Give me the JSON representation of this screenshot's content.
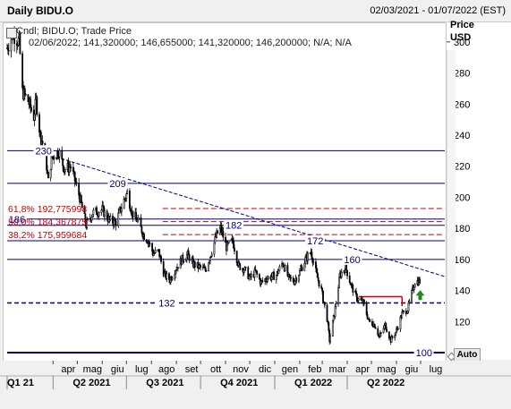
{
  "header": {
    "title": "Daily BIDU.O",
    "date_range": "02/03/2021 - 01/07/2022 (EST)"
  },
  "legend": {
    "line1": "Cndl; BIDU.O; Trade Price",
    "line2": "02/06/2022; 141,320000; 146,655000; 141,320000; 146,200000; N/A; N/A"
  },
  "yaxis": {
    "title": "Price",
    "unit": "USD"
  },
  "controls": {
    "auto_label": "Auto"
  },
  "colors": {
    "navy": "#000080",
    "red": "#cc0000",
    "green": "#1a8a1a",
    "candle": "#000000"
  },
  "chart_data": {
    "type": "candlestick",
    "ylim": [
      96,
      312
    ],
    "yticks": [
      100,
      120,
      140,
      160,
      180,
      200,
      220,
      240,
      260,
      280,
      300
    ],
    "xlim": [
      "2021-02-03",
      "2022-07-31"
    ],
    "month_labels": [
      {
        "date": "2021-04-01",
        "label": "apr"
      },
      {
        "date": "2021-05-01",
        "label": "mag"
      },
      {
        "date": "2021-06-01",
        "label": "giu"
      },
      {
        "date": "2021-07-01",
        "label": "lug"
      },
      {
        "date": "2021-08-01",
        "label": "ago"
      },
      {
        "date": "2021-09-01",
        "label": "set"
      },
      {
        "date": "2021-10-01",
        "label": "ott"
      },
      {
        "date": "2021-11-01",
        "label": "nov"
      },
      {
        "date": "2021-12-01",
        "label": "dic"
      },
      {
        "date": "2022-01-01",
        "label": "gen"
      },
      {
        "date": "2022-02-01",
        "label": "feb"
      },
      {
        "date": "2022-03-01",
        "label": "mar"
      },
      {
        "date": "2022-04-01",
        "label": "apr"
      },
      {
        "date": "2022-05-01",
        "label": "mag"
      },
      {
        "date": "2022-06-01",
        "label": "giu"
      },
      {
        "date": "2022-07-01",
        "label": "lug"
      }
    ],
    "quarter_labels": [
      {
        "date": "2021-02-03",
        "label": "Q1 21"
      },
      {
        "date": "2021-04-01",
        "label": "Q2 2021"
      },
      {
        "date": "2021-07-01",
        "label": "Q3 2021"
      },
      {
        "date": "2021-10-01",
        "label": "Q4 2021"
      },
      {
        "date": "2022-01-01",
        "label": "Q1 2022"
      },
      {
        "date": "2022-04-01",
        "label": "Q2 2022"
      }
    ],
    "horizontal_levels": [
      {
        "value": 230,
        "label": "230",
        "style": "solid",
        "label_date": "2021-03-10"
      },
      {
        "value": 209,
        "label": "209",
        "style": "solid",
        "label_date": "2021-06-10"
      },
      {
        "value": 186,
        "label": "186",
        "style": "solid",
        "label_date": "2021-02-05"
      },
      {
        "value": 182,
        "label": "182",
        "style": "solid",
        "label_date": "2021-11-01"
      },
      {
        "value": 172,
        "label": "172",
        "style": "solid",
        "label_date": "2022-02-10"
      },
      {
        "value": 160,
        "label": "160",
        "style": "solid",
        "label_date": "2022-03-28"
      },
      {
        "value": 132,
        "label": "132",
        "style": "dashed",
        "label_date": "2021-08-10"
      },
      {
        "value": 100,
        "label": "100",
        "style": "solid-thick",
        "label_date": "2022-06-25"
      }
    ],
    "trendline": {
      "start": [
        "2021-03-10",
        230
      ],
      "end": [
        "2022-07-31",
        149
      ]
    },
    "fibonacci": [
      {
        "value": 192.77,
        "label": "61,8% 192,775998"
      },
      {
        "value": 184.37,
        "label": "50,0% 184,367875"
      },
      {
        "value": 175.96,
        "label": "38,2% 175,959684"
      }
    ],
    "fib_anchor_date": "2021-08-15",
    "red_box": {
      "from": "2022-04-15",
      "to": "2022-06-08",
      "top": 136,
      "bottom": 130
    },
    "last_close": 146.2,
    "anchors": [
      [
        "2021-02-03",
        296
      ],
      [
        "2021-02-10",
        305
      ],
      [
        "2021-02-18",
        300
      ],
      [
        "2021-02-22",
        268
      ],
      [
        "2021-03-01",
        262
      ],
      [
        "2021-03-08",
        252
      ],
      [
        "2021-03-11",
        262
      ],
      [
        "2021-03-16",
        240
      ],
      [
        "2021-03-22",
        230
      ],
      [
        "2021-03-26",
        210
      ],
      [
        "2021-03-30",
        225
      ],
      [
        "2021-04-08",
        230
      ],
      [
        "2021-04-15",
        218
      ],
      [
        "2021-04-23",
        220
      ],
      [
        "2021-05-04",
        200
      ],
      [
        "2021-05-12",
        182
      ],
      [
        "2021-05-20",
        190
      ],
      [
        "2021-06-01",
        192
      ],
      [
        "2021-06-10",
        185
      ],
      [
        "2021-06-18",
        184
      ],
      [
        "2021-06-28",
        198
      ],
      [
        "2021-07-02",
        203
      ],
      [
        "2021-07-08",
        190
      ],
      [
        "2021-07-16",
        184
      ],
      [
        "2021-07-22",
        176
      ],
      [
        "2021-07-28",
        172
      ],
      [
        "2021-08-03",
        164
      ],
      [
        "2021-08-10",
        165
      ],
      [
        "2021-08-17",
        150
      ],
      [
        "2021-08-24",
        147
      ],
      [
        "2021-08-31",
        154
      ],
      [
        "2021-09-08",
        160
      ],
      [
        "2021-09-15",
        163
      ],
      [
        "2021-09-22",
        157
      ],
      [
        "2021-09-30",
        155
      ],
      [
        "2021-10-07",
        153
      ],
      [
        "2021-10-14",
        164
      ],
      [
        "2021-10-21",
        176
      ],
      [
        "2021-10-26",
        180
      ],
      [
        "2021-11-02",
        168
      ],
      [
        "2021-11-10",
        172
      ],
      [
        "2021-11-17",
        156
      ],
      [
        "2021-11-24",
        154
      ],
      [
        "2021-12-01",
        148
      ],
      [
        "2021-12-08",
        152
      ],
      [
        "2021-12-15",
        145
      ],
      [
        "2021-12-22",
        148
      ],
      [
        "2022-01-03",
        150
      ],
      [
        "2022-01-11",
        158
      ],
      [
        "2022-01-18",
        148
      ],
      [
        "2022-01-25",
        146
      ],
      [
        "2022-02-01",
        152
      ],
      [
        "2022-02-08",
        160
      ],
      [
        "2022-02-15",
        165
      ],
      [
        "2022-02-22",
        150
      ],
      [
        "2022-02-28",
        140
      ],
      [
        "2022-03-07",
        122
      ],
      [
        "2022-03-10",
        108
      ],
      [
        "2022-03-16",
        125
      ],
      [
        "2022-03-23",
        150
      ],
      [
        "2022-03-30",
        155
      ],
      [
        "2022-04-06",
        143
      ],
      [
        "2022-04-13",
        135
      ],
      [
        "2022-04-21",
        132
      ],
      [
        "2022-04-28",
        120
      ],
      [
        "2022-05-05",
        118
      ],
      [
        "2022-05-11",
        110
      ],
      [
        "2022-05-18",
        118
      ],
      [
        "2022-05-25",
        108
      ],
      [
        "2022-06-01",
        114
      ],
      [
        "2022-06-08",
        125
      ],
      [
        "2022-06-15",
        128
      ],
      [
        "2022-06-21",
        140
      ],
      [
        "2022-06-24",
        146
      ],
      [
        "2022-06-30",
        146
      ]
    ]
  }
}
